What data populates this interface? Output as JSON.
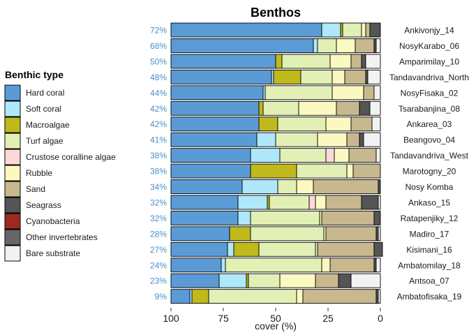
{
  "chart_data": {
    "type": "bar",
    "orientation": "horizontal-stacked",
    "title": "Benthos",
    "xlabel": "cover (%)",
    "xlim": [
      100,
      0
    ],
    "x_reversed": true,
    "x_ticks": [
      100,
      75,
      50,
      25,
      0
    ],
    "legend_title": "Benthic type",
    "legend_position": "left",
    "categories": [
      "Ankivonjy_14",
      "NosyKarabo_06",
      "Amparimilay_10",
      "Tandavandriva_North",
      "NosyFisaka_02",
      "Tsarabanjina_08",
      "Ankarea_03",
      "Beangovo_04",
      "Tandavandriva_West",
      "Marotogny_20",
      "Nosy Komba",
      "Ankaso_15",
      "Ratapenjiky_12",
      "Madiro_17",
      "Kisimani_16",
      "Ambatomilay_18",
      "Antsoa_07",
      "Ambatofisaka_19"
    ],
    "hard_coral_labels": [
      "72%",
      "68%",
      "50%",
      "48%",
      "44%",
      "42%",
      "42%",
      "41%",
      "38%",
      "38%",
      "34%",
      "32%",
      "32%",
      "28%",
      "27%",
      "24%",
      "23%",
      "9%"
    ],
    "series": [
      {
        "name": "Hard coral",
        "color": "#5b9bd5",
        "values": [
          72,
          68,
          50,
          48,
          44,
          42,
          42,
          41,
          38,
          38,
          34,
          32,
          32,
          28,
          27,
          24,
          23,
          9
        ]
      },
      {
        "name": "Soft coral",
        "color": "#aee8fa",
        "values": [
          9,
          2,
          0,
          1,
          1,
          0,
          0,
          9,
          14,
          0,
          17,
          14,
          6,
          0,
          3,
          2,
          13,
          1
        ]
      },
      {
        "name": "Macroalgae",
        "color": "#bfb91c",
        "values": [
          1,
          0,
          3,
          13,
          0,
          2,
          9,
          0,
          0,
          22,
          0,
          1,
          0,
          10,
          12,
          0,
          1,
          8
        ]
      },
      {
        "name": "Turf algae",
        "color": "#e2f0b5",
        "values": [
          9,
          9,
          23,
          15,
          32,
          17,
          23,
          20,
          22,
          24,
          9,
          19,
          33,
          35,
          27,
          46,
          15,
          42
        ]
      },
      {
        "name": "Crustose coralline algae",
        "color": "#fdd8da",
        "values": [
          0,
          0,
          0,
          0,
          0,
          0,
          0,
          0,
          4,
          0,
          0,
          3,
          0,
          0,
          0,
          0,
          0,
          0
        ]
      },
      {
        "name": "Rubble",
        "color": "#fbf9bf",
        "values": [
          2,
          9,
          10,
          6,
          15,
          18,
          12,
          14,
          7,
          3,
          8,
          5,
          1,
          1,
          1,
          4,
          17,
          3
        ]
      },
      {
        "name": "Sand",
        "color": "#c8b88f",
        "values": [
          2,
          9,
          5,
          10,
          5,
          11,
          10,
          6,
          13,
          13,
          31,
          17,
          25,
          24,
          27,
          21,
          11,
          35
        ]
      },
      {
        "name": "Seagrass",
        "color": "#555555",
        "values": [
          5,
          1,
          2,
          1,
          0,
          5,
          0,
          2,
          0,
          0,
          1,
          8,
          3,
          1,
          4,
          1,
          6,
          1
        ]
      },
      {
        "name": "Cyanobacteria",
        "color": "#9c2a20",
        "values": [
          0,
          0,
          0,
          0,
          0,
          0,
          0,
          0,
          0,
          0,
          0,
          0,
          0,
          0,
          0,
          0,
          0,
          0
        ]
      },
      {
        "name": "Other invertebrates",
        "color": "#666666",
        "values": [
          0,
          0,
          0,
          0,
          0,
          0,
          0,
          0,
          0,
          0,
          0,
          0,
          0,
          0,
          0,
          0,
          0,
          0
        ]
      },
      {
        "name": "Bare substrate",
        "color": "#f2f2f2",
        "values": [
          0,
          2,
          7,
          6,
          3,
          5,
          4,
          8,
          2,
          0,
          0,
          1,
          0,
          1,
          0,
          2,
          14,
          1
        ]
      }
    ]
  }
}
